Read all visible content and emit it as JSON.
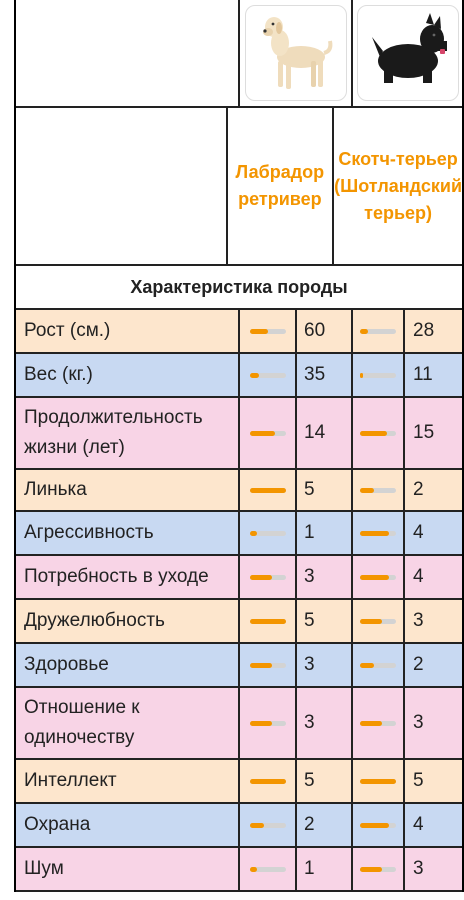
{
  "breeds": [
    {
      "name": "Лабрадор ретривер",
      "image": "labrador-photo"
    },
    {
      "name": "Скотч-терьер (Шотландский терьер)",
      "image": "scottish-terrier-photo"
    }
  ],
  "section_title": "Характеристика породы",
  "colors": {
    "accent": "#f39500",
    "peach": "#fde6cd",
    "blue": "#c8d9f2",
    "pink": "#f8d4e6"
  },
  "rows": [
    {
      "label": "Рост (см.)",
      "v1": "60",
      "v2": "28",
      "f1": 0.5,
      "f2": 0.22,
      "color": "peach"
    },
    {
      "label": "Вес (кг.)",
      "v1": "35",
      "v2": "11",
      "f1": 0.25,
      "f2": 0.08,
      "color": "blue"
    },
    {
      "label": "Продолжительность жизни (лет)",
      "v1": "14",
      "v2": "15",
      "f1": 0.7,
      "f2": 0.75,
      "color": "pink"
    },
    {
      "label": "Линька",
      "v1": "5",
      "v2": "2",
      "f1": 1.0,
      "f2": 0.4,
      "color": "peach"
    },
    {
      "label": "Агрессивность",
      "v1": "1",
      "v2": "4",
      "f1": 0.2,
      "f2": 0.8,
      "color": "blue"
    },
    {
      "label": "Потребность в уходе",
      "v1": "3",
      "v2": "4",
      "f1": 0.6,
      "f2": 0.8,
      "color": "pink"
    },
    {
      "label": "Дружелюбность",
      "v1": "5",
      "v2": "3",
      "f1": 1.0,
      "f2": 0.6,
      "color": "peach"
    },
    {
      "label": "Здоровье",
      "v1": "3",
      "v2": "2",
      "f1": 0.6,
      "f2": 0.4,
      "color": "blue"
    },
    {
      "label": "Отношение к одиночеству",
      "v1": "3",
      "v2": "3",
      "f1": 0.6,
      "f2": 0.6,
      "color": "pink"
    },
    {
      "label": "Интеллект",
      "v1": "5",
      "v2": "5",
      "f1": 1.0,
      "f2": 1.0,
      "color": "peach"
    },
    {
      "label": "Охрана",
      "v1": "2",
      "v2": "4",
      "f1": 0.4,
      "f2": 0.8,
      "color": "blue"
    },
    {
      "label": "Шум",
      "v1": "1",
      "v2": "3",
      "f1": 0.2,
      "f2": 0.6,
      "color": "pink"
    }
  ]
}
